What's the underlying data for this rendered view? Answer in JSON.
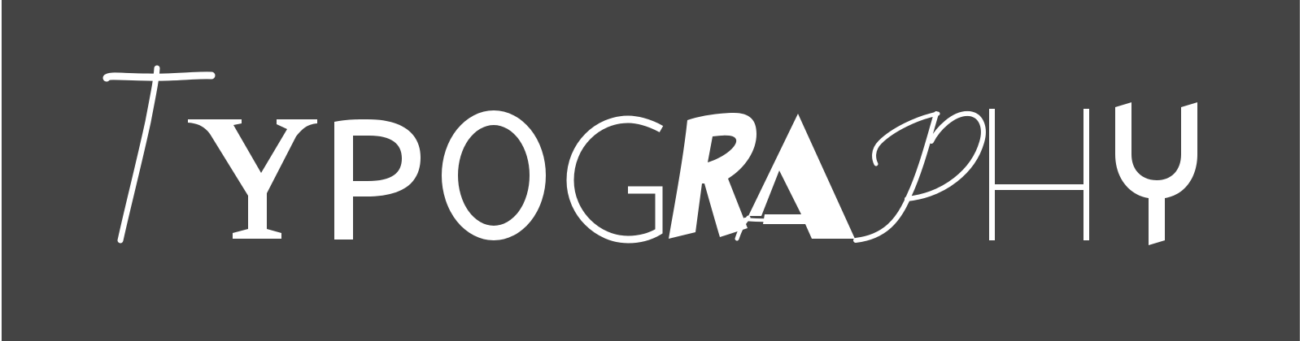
{
  "artwork": {
    "word": "TYPOGRAPHY",
    "background_color": "#444444",
    "ink_color": "#ffffff"
  }
}
